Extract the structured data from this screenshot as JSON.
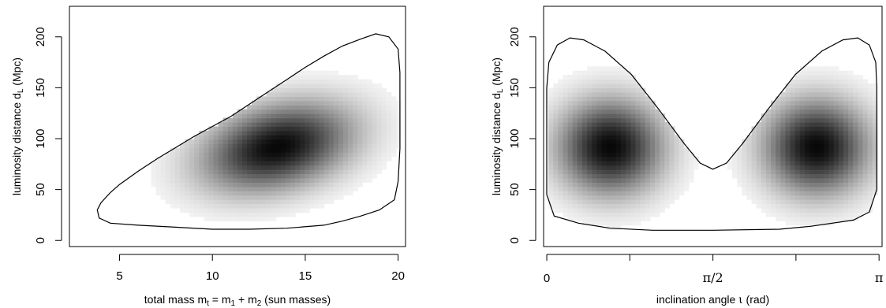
{
  "chart_data": [
    {
      "type": "heatmap",
      "title": "",
      "xlabel": {
        "pre": "total mass m",
        "sub1": "t",
        "eq": " = m",
        "sub2": "1",
        "plus": " + m",
        "sub3": "2",
        "post": " (sun masses)"
      },
      "ylabel": {
        "pre": "luminosity distance d",
        "sub": "L",
        "post": " (Mpc)"
      },
      "xlim": [
        2.3,
        20.4
      ],
      "ylim": [
        -6,
        230
      ],
      "x_ticks": [
        {
          "value": 5,
          "label": "5"
        },
        {
          "value": 10,
          "label": "10"
        },
        {
          "value": 15,
          "label": "15"
        },
        {
          "value": 20,
          "label": "20"
        }
      ],
      "y_ticks": [
        {
          "value": 0,
          "label": "0"
        },
        {
          "value": 50,
          "label": "50"
        },
        {
          "value": 100,
          "label": "100"
        },
        {
          "value": 150,
          "label": "150"
        },
        {
          "value": 200,
          "label": "200"
        }
      ],
      "density_modes": [
        {
          "x": 13.5,
          "y": 92,
          "sx": 2.6,
          "sy": 28,
          "rho": 0.3,
          "w": 1.0
        }
      ],
      "contour": [
        [
          3.8,
          30
        ],
        [
          4.0,
          37
        ],
        [
          4.5,
          47
        ],
        [
          5.0,
          55
        ],
        [
          6.0,
          68
        ],
        [
          7.0,
          80
        ],
        [
          8.0,
          91
        ],
        [
          9.0,
          102
        ],
        [
          10.0,
          112
        ],
        [
          11.0,
          122
        ],
        [
          12.0,
          134
        ],
        [
          13.0,
          146
        ],
        [
          14.0,
          158
        ],
        [
          15.0,
          170
        ],
        [
          16.0,
          181
        ],
        [
          17.0,
          191
        ],
        [
          18.0,
          198
        ],
        [
          18.8,
          203
        ],
        [
          19.5,
          200
        ],
        [
          20.0,
          188
        ],
        [
          20.1,
          165
        ],
        [
          20.1,
          130
        ],
        [
          20.1,
          90
        ],
        [
          20.0,
          58
        ],
        [
          19.8,
          40
        ],
        [
          19.0,
          30
        ],
        [
          18.0,
          24
        ],
        [
          17.0,
          19
        ],
        [
          16.0,
          15
        ],
        [
          14.0,
          12
        ],
        [
          12.0,
          11
        ],
        [
          10.0,
          11
        ],
        [
          8.0,
          13
        ],
        [
          6.0,
          15
        ],
        [
          4.5,
          17
        ],
        [
          3.9,
          22
        ],
        [
          3.8,
          30
        ]
      ]
    },
    {
      "type": "heatmap",
      "title": "",
      "xlabel": {
        "pre": "inclination angle ",
        "iota": "ι",
        "post": " (rad)"
      },
      "ylabel": {
        "pre": "luminosity distance d",
        "sub": "L",
        "post": " (Mpc)"
      },
      "xlim": [
        -0.03,
        3.17
      ],
      "ylim": [
        -6,
        230
      ],
      "x_ticks": [
        {
          "value": 0,
          "label": "0"
        },
        {
          "value": 0.785,
          "label": ""
        },
        {
          "value": 1.571,
          "label": "π/2"
        },
        {
          "value": 2.356,
          "label": ""
        },
        {
          "value": 3.1416,
          "label": "π"
        }
      ],
      "y_ticks": [
        {
          "value": 0,
          "label": "0"
        },
        {
          "value": 50,
          "label": "50"
        },
        {
          "value": 100,
          "label": "100"
        },
        {
          "value": 150,
          "label": "150"
        },
        {
          "value": 200,
          "label": "200"
        }
      ],
      "density_modes": [
        {
          "x": 0.6,
          "y": 92,
          "sx": 0.32,
          "sy": 30,
          "rho": 0,
          "w": 1.0
        },
        {
          "x": 2.55,
          "y": 92,
          "sx": 0.32,
          "sy": 30,
          "rho": 0,
          "w": 1.0
        }
      ],
      "contour": [
        [
          0.0,
          100
        ],
        [
          0.0,
          150
        ],
        [
          0.02,
          175
        ],
        [
          0.1,
          192
        ],
        [
          0.22,
          199
        ],
        [
          0.35,
          197
        ],
        [
          0.55,
          186
        ],
        [
          0.8,
          163
        ],
        [
          1.05,
          130
        ],
        [
          1.3,
          95
        ],
        [
          1.45,
          76
        ],
        [
          1.57,
          70
        ],
        [
          1.7,
          76
        ],
        [
          1.85,
          95
        ],
        [
          2.1,
          130
        ],
        [
          2.35,
          163
        ],
        [
          2.6,
          186
        ],
        [
          2.8,
          197
        ],
        [
          2.94,
          199
        ],
        [
          3.05,
          192
        ],
        [
          3.11,
          175
        ],
        [
          3.12,
          150
        ],
        [
          3.12,
          100
        ],
        [
          3.12,
          50
        ],
        [
          3.05,
          28
        ],
        [
          2.9,
          20
        ],
        [
          2.5,
          14
        ],
        [
          2.2,
          11
        ],
        [
          1.57,
          10
        ],
        [
          1.0,
          10
        ],
        [
          0.6,
          12
        ],
        [
          0.3,
          17
        ],
        [
          0.07,
          24
        ],
        [
          0.0,
          45
        ],
        [
          0.0,
          100
        ]
      ]
    }
  ]
}
